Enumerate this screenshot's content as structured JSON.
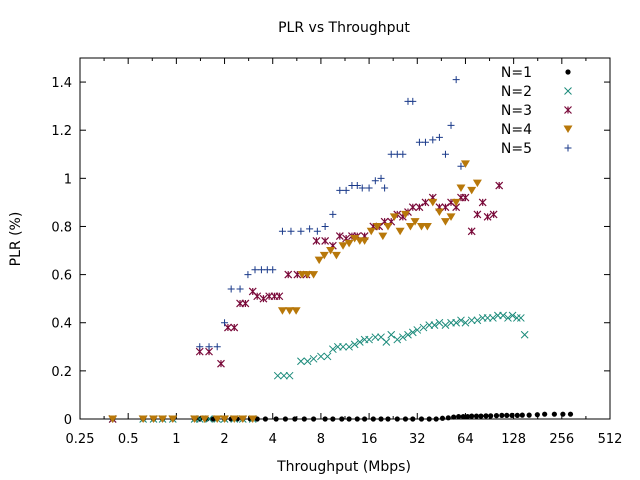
{
  "chart_data": {
    "type": "scatter",
    "title": "PLR vs Throughput",
    "xlabel": "Throughput (Mbps)",
    "ylabel": "PLR (%)",
    "xscale": "log2",
    "xlim": [
      0.25,
      512
    ],
    "ylim": [
      0,
      1.5
    ],
    "xticks": [
      0.25,
      0.5,
      1,
      2,
      4,
      8,
      16,
      32,
      64,
      128,
      256,
      512
    ],
    "xtick_labels": [
      "0.25",
      "0.5",
      "1",
      "2",
      "4",
      "8",
      "16",
      "32",
      "64",
      "128",
      "256",
      "512"
    ],
    "yticks": [
      0,
      0.2,
      0.4,
      0.6,
      0.8,
      1,
      1.2,
      1.4
    ],
    "ytick_labels": [
      "0",
      "0.2",
      "0.4",
      "0.6",
      "0.8",
      "1",
      "1.2",
      "1.4"
    ],
    "grid": false,
    "legend_position": "top-right",
    "series": [
      {
        "name": "N=1",
        "marker": "filled-circle",
        "color": "#000000",
        "x": [
          0.4,
          0.62,
          0.72,
          0.82,
          0.95,
          1.3,
          1.4,
          1.55,
          1.7,
          2.0,
          2.2,
          2.4,
          2.6,
          2.9,
          3.2,
          3.6,
          4.2,
          4.8,
          5.5,
          6.3,
          7.2,
          8.5,
          9.5,
          10.8,
          12,
          13.5,
          15,
          17,
          19,
          21,
          24,
          27,
          30,
          34,
          38,
          42,
          46,
          50,
          54,
          58,
          62,
          66,
          70,
          75,
          80,
          86,
          92,
          100,
          108,
          116,
          125,
          135,
          145,
          160,
          180,
          200,
          230,
          260,
          290
        ],
        "y": [
          0,
          0,
          0,
          0,
          0,
          0,
          0,
          0,
          0,
          0,
          0,
          0,
          0,
          0,
          0,
          0,
          0,
          0,
          0,
          0,
          0,
          0,
          0,
          0,
          0,
          0,
          0,
          0,
          0,
          0,
          0,
          0,
          0,
          0,
          0,
          0,
          0.003,
          0.005,
          0.008,
          0.01,
          0.01,
          0.01,
          0.012,
          0.012,
          0.012,
          0.013,
          0.013,
          0.014,
          0.015,
          0.015,
          0.015,
          0.015,
          0.016,
          0.016,
          0.018,
          0.02,
          0.02,
          0.02,
          0.02
        ]
      },
      {
        "name": "N=2",
        "marker": "x",
        "color": "#1a8a7a",
        "x": [
          0.4,
          0.62,
          0.72,
          0.82,
          0.95,
          1.3,
          1.4,
          1.6,
          1.8,
          2.0,
          2.3,
          2.6,
          3.0,
          4.3,
          4.7,
          5.1,
          6.0,
          6.6,
          7.2,
          8.0,
          8.8,
          9.5,
          10.2,
          11,
          12,
          13,
          14,
          15,
          16,
          17.5,
          19,
          20.5,
          22,
          24,
          26,
          28,
          30,
          32,
          35,
          38,
          41,
          44,
          48,
          52,
          56,
          60,
          64,
          70,
          76,
          82,
          88,
          95,
          102,
          110,
          118,
          126,
          134,
          142,
          150
        ],
        "y": [
          0,
          0,
          0,
          0,
          0,
          0,
          0,
          0,
          0,
          0,
          0,
          0,
          0,
          0.18,
          0.18,
          0.18,
          0.24,
          0.24,
          0.25,
          0.26,
          0.26,
          0.29,
          0.3,
          0.3,
          0.3,
          0.31,
          0.32,
          0.33,
          0.33,
          0.34,
          0.34,
          0.32,
          0.35,
          0.33,
          0.34,
          0.35,
          0.36,
          0.37,
          0.38,
          0.39,
          0.39,
          0.4,
          0.39,
          0.4,
          0.4,
          0.41,
          0.4,
          0.41,
          0.41,
          0.42,
          0.42,
          0.42,
          0.43,
          0.43,
          0.42,
          0.43,
          0.42,
          0.42,
          0.35
        ]
      },
      {
        "name": "N=3",
        "marker": "star",
        "color": "#7a0a3a",
        "x": [
          0.4,
          1.4,
          1.6,
          1.9,
          2.1,
          2.3,
          2.5,
          2.7,
          3.0,
          3.2,
          3.5,
          3.8,
          4.1,
          4.4,
          5.0,
          5.7,
          6.5,
          7.5,
          8.5,
          9.5,
          10.5,
          11.5,
          12.5,
          13.5,
          15,
          17,
          18.5,
          20,
          22,
          24,
          26,
          28,
          30,
          33,
          36,
          40,
          44,
          48,
          52,
          56,
          60,
          64,
          70,
          76,
          82,
          88,
          96,
          104
        ],
        "y": [
          0,
          0.28,
          0.28,
          0.23,
          0.38,
          0.38,
          0.48,
          0.48,
          0.53,
          0.51,
          0.5,
          0.51,
          0.51,
          0.51,
          0.6,
          0.6,
          0.6,
          0.74,
          0.74,
          0.72,
          0.76,
          0.75,
          0.76,
          0.76,
          0.76,
          0.8,
          0.8,
          0.82,
          0.82,
          0.85,
          0.84,
          0.86,
          0.88,
          0.88,
          0.9,
          0.92,
          0.88,
          0.88,
          0.9,
          0.88,
          0.92,
          0.92,
          0.78,
          0.85,
          0.9,
          0.84,
          0.85,
          0.97
        ]
      },
      {
        "name": "N=4",
        "marker": "triangle-down",
        "color": "#b8780a",
        "x": [
          0.4,
          0.62,
          0.72,
          0.82,
          0.95,
          1.3,
          1.5,
          1.8,
          2.0,
          2.3,
          2.6,
          3.0,
          4.6,
          5.1,
          5.6,
          6.1,
          6.6,
          7.2,
          7.8,
          8.4,
          9.2,
          10,
          11,
          12,
          13,
          14,
          15,
          16.5,
          18,
          19.5,
          21,
          23,
          25,
          27,
          29,
          31,
          34,
          37,
          40,
          44,
          48,
          52,
          56,
          60,
          64,
          70,
          76
        ],
        "y": [
          0,
          0,
          0,
          0,
          0,
          0,
          0,
          0,
          0,
          0,
          0,
          0,
          0.45,
          0.45,
          0.45,
          0.6,
          0.6,
          0.6,
          0.66,
          0.68,
          0.7,
          0.68,
          0.72,
          0.73,
          0.75,
          0.74,
          0.74,
          0.78,
          0.8,
          0.76,
          0.8,
          0.84,
          0.78,
          0.85,
          0.8,
          0.82,
          0.8,
          0.8,
          0.9,
          0.86,
          0.82,
          0.84,
          0.9,
          0.96,
          1.06,
          0.95,
          0.98
        ]
      },
      {
        "name": "N=5",
        "marker": "plus",
        "color": "#1a3a8a",
        "x": [
          1.4,
          1.6,
          1.8,
          2.0,
          2.2,
          2.5,
          2.8,
          3.1,
          3.4,
          3.7,
          4.0,
          4.6,
          5.2,
          6.0,
          6.8,
          7.6,
          8.5,
          9.5,
          10.5,
          11.5,
          12.5,
          13.5,
          14.5,
          16,
          17.5,
          19,
          20,
          22,
          24,
          26,
          28,
          30,
          33,
          36,
          40,
          44,
          48,
          52,
          56,
          60
        ],
        "y": [
          0.3,
          0.3,
          0.3,
          0.4,
          0.54,
          0.54,
          0.6,
          0.62,
          0.62,
          0.62,
          0.62,
          0.78,
          0.78,
          0.78,
          0.79,
          0.78,
          0.8,
          0.85,
          0.95,
          0.95,
          0.97,
          0.97,
          0.96,
          0.96,
          0.99,
          1.0,
          0.96,
          1.1,
          1.1,
          1.1,
          1.32,
          1.32,
          1.15,
          1.15,
          1.16,
          1.17,
          1.1,
          1.22,
          1.41,
          1.05
        ]
      }
    ]
  }
}
